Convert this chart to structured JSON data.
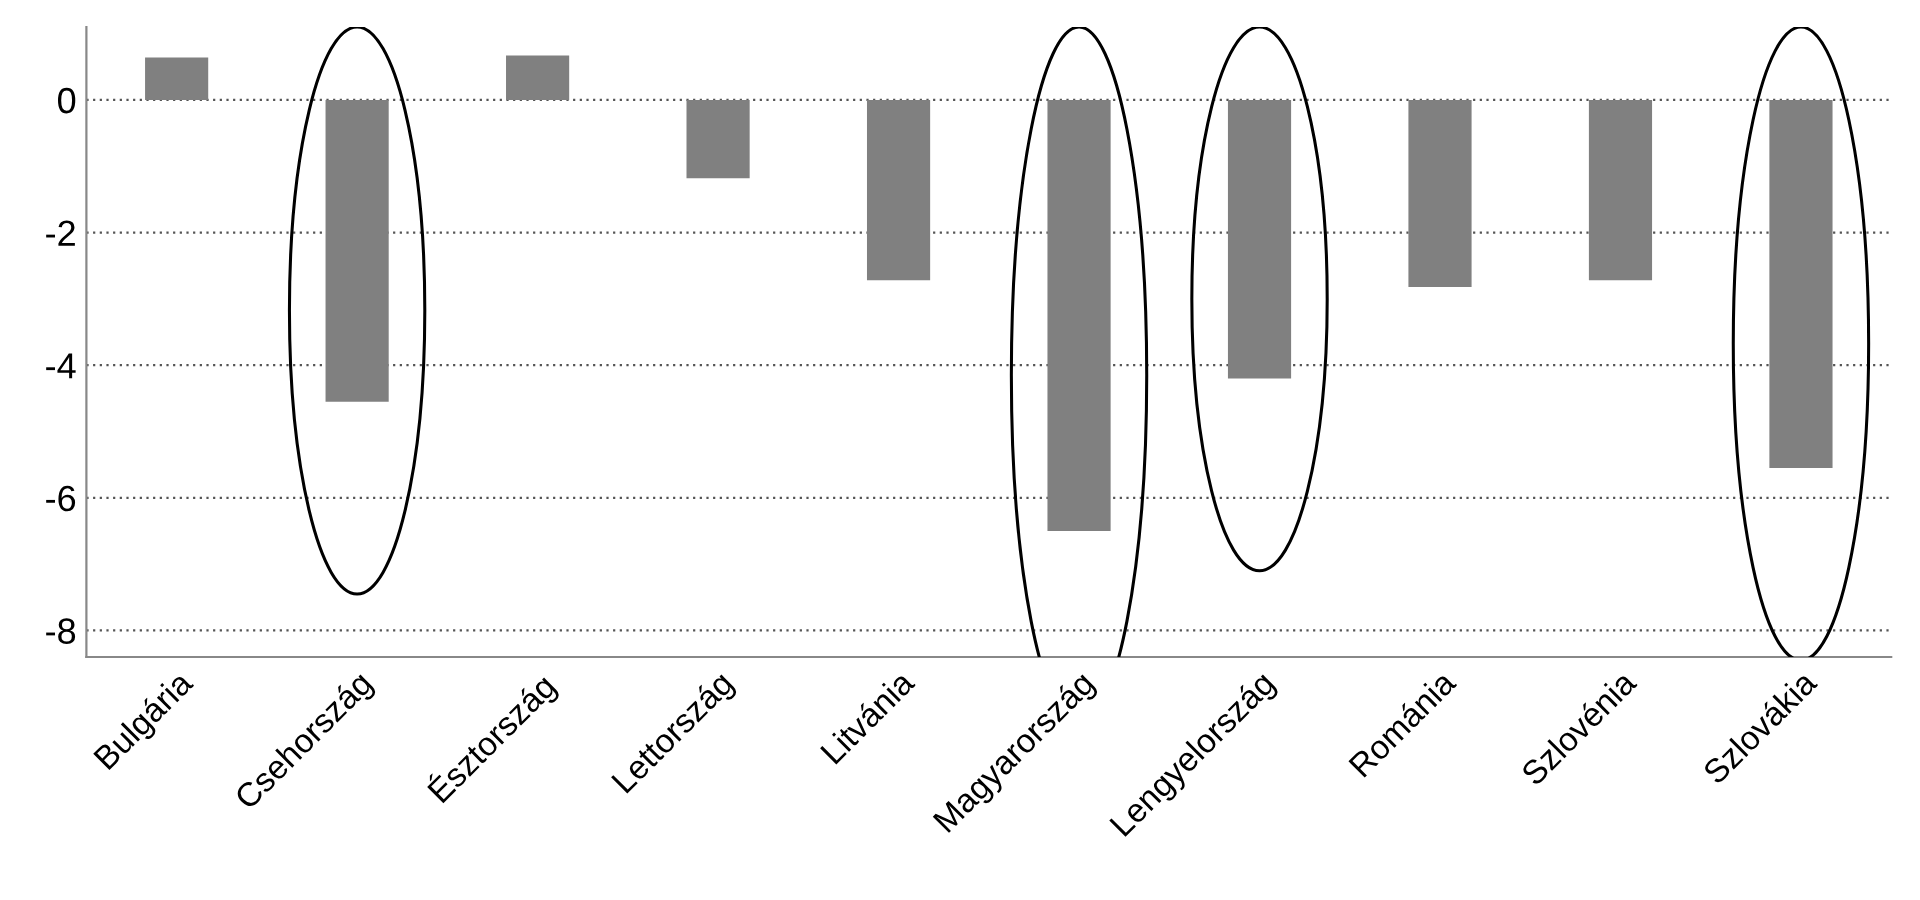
{
  "chart_data": {
    "type": "bar",
    "categories": [
      "Bulgária",
      "Csehország",
      "Észtország",
      "Lettország",
      "Litvánia",
      "Magyarország",
      "Lengyelország",
      "Románia",
      "Szlovénia",
      "Szlovákia"
    ],
    "values": [
      0.64,
      -4.55,
      0.67,
      -1.18,
      -2.72,
      -6.5,
      -4.2,
      -2.82,
      -2.72,
      -5.55
    ],
    "color": "#808080",
    "ylim": [
      -8.4,
      1.1
    ],
    "yticks": [
      -8,
      -6,
      -4,
      -2,
      0
    ],
    "grid": "y"
  }
}
